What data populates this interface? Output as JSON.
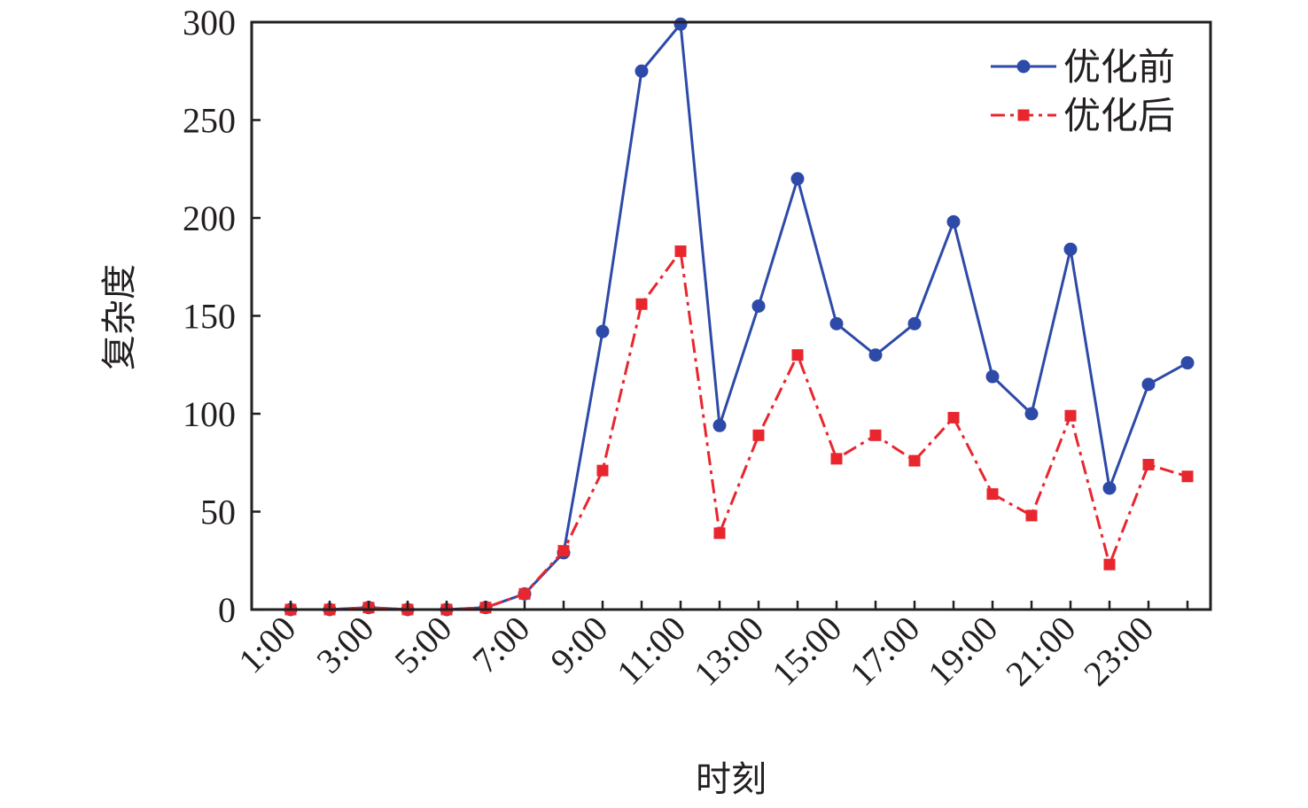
{
  "chart_data": {
    "type": "line",
    "title": "",
    "xlabel": "时刻",
    "ylabel": "复杂度",
    "x": [
      "1:00",
      "2:00",
      "3:00",
      "4:00",
      "5:00",
      "6:00",
      "7:00",
      "8:00",
      "9:00",
      "10:00",
      "11:00",
      "12:00",
      "13:00",
      "14:00",
      "15:00",
      "16:00",
      "17:00",
      "18:00",
      "19:00",
      "20:00",
      "21:00",
      "22:00",
      "23:00",
      "24:00"
    ],
    "x_tick_labels": [
      "1:00",
      "3:00",
      "5:00",
      "7:00",
      "9:00",
      "11:00",
      "13:00",
      "15:00",
      "17:00",
      "19:00",
      "21:00",
      "23:00"
    ],
    "ylim": [
      0,
      300
    ],
    "y_ticks": [
      0,
      50,
      100,
      150,
      200,
      250,
      300
    ],
    "grid": false,
    "legend_position": "top-right",
    "series": [
      {
        "name": "优化前",
        "color": "#2e4aa8",
        "marker": "circle",
        "line_style": "solid",
        "values": [
          0,
          0,
          1,
          0,
          0,
          1,
          8,
          29,
          142,
          275,
          299,
          94,
          155,
          220,
          146,
          130,
          146,
          198,
          119,
          100,
          184,
          62,
          115,
          126
        ]
      },
      {
        "name": "优化后",
        "color": "#e8262e",
        "marker": "square",
        "line_style": "dash-dot",
        "values": [
          0,
          0,
          1,
          0,
          0,
          1,
          8,
          30,
          71,
          156,
          183,
          39,
          89,
          130,
          77,
          89,
          76,
          98,
          59,
          48,
          99,
          23,
          74,
          68
        ]
      }
    ]
  }
}
